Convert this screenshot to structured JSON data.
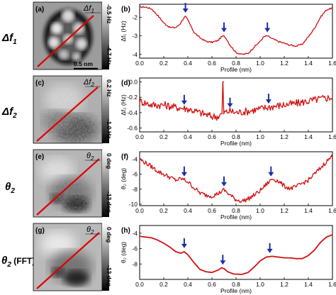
{
  "rows": [
    {
      "row_label": "Δf",
      "row_sub": "1",
      "image_panel": "(a)",
      "image_tag": "Δf",
      "image_tag_sub": "1",
      "scale_top": "-0.5 Hz",
      "scale_bottom": "-4.7 Hz",
      "scalebar_label": "0.5 nm",
      "plot_panel": "(b)"
    },
    {
      "row_label": "Δf",
      "row_sub": "2",
      "image_panel": "(c)",
      "image_tag": "Δf",
      "image_tag_sub": "2",
      "scale_top": "0.2 Hz",
      "scale_bottom": "-1.0 Hz",
      "scalebar_label": "",
      "plot_panel": "(d)"
    },
    {
      "row_label": "θ",
      "row_sub": "2",
      "image_panel": "(e)",
      "image_tag": "θ",
      "image_tag_sub": "2",
      "scale_top": "0 deg",
      "scale_bottom": "-13 deg",
      "scalebar_label": "",
      "plot_panel": "(f)"
    },
    {
      "row_label": "θ",
      "row_sub": "2",
      "row_suffix": " (FFT)",
      "image_panel": "(g)",
      "image_tag": "θ",
      "image_tag_sub": "2",
      "scale_top": "0 deg",
      "scale_bottom": "-13 deg",
      "scalebar_label": "",
      "plot_panel": "(h)"
    }
  ],
  "chart_data": [
    {
      "type": "line",
      "panel": "(b)",
      "xlabel": "Profile (nm)",
      "ylabel": "Δf₁ (Hz)",
      "xlim": [
        0,
        1.6
      ],
      "ylim": [
        -4.2,
        -1.3
      ],
      "xticks": [
        0.0,
        0.2,
        0.4,
        0.6,
        0.8,
        1.0,
        1.2,
        1.4,
        1.6
      ],
      "yticks": [
        -2.0,
        -3.0,
        -4.0
      ],
      "noise": 0.04,
      "series": [
        {
          "x": [
            0,
            0.05,
            0.1,
            0.15,
            0.2,
            0.25,
            0.3,
            0.33,
            0.36,
            0.38,
            0.4,
            0.45,
            0.5,
            0.55,
            0.6,
            0.65,
            0.68,
            0.7,
            0.72,
            0.75,
            0.8,
            0.85,
            0.9,
            0.95,
            1.0,
            1.03,
            1.06,
            1.1,
            1.15,
            1.2,
            1.25,
            1.3,
            1.35,
            1.4,
            1.45,
            1.5,
            1.55,
            1.6
          ],
          "y": [
            -1.45,
            -1.45,
            -1.55,
            -1.9,
            -2.3,
            -2.55,
            -2.55,
            -2.4,
            -2.1,
            -1.95,
            -2.15,
            -2.8,
            -3.1,
            -3.3,
            -3.35,
            -3.25,
            -3.05,
            -3.0,
            -3.15,
            -3.5,
            -3.9,
            -4.0,
            -3.95,
            -3.6,
            -3.3,
            -3.05,
            -3.0,
            -3.15,
            -3.3,
            -3.4,
            -3.5,
            -3.55,
            -3.45,
            -3.05,
            -2.6,
            -2.0,
            -1.6,
            -1.5
          ]
        }
      ],
      "arrows_x": [
        0.38,
        0.7,
        1.06
      ]
    },
    {
      "type": "line",
      "panel": "(d)",
      "xlabel": "Profile (nm)",
      "ylabel": "Δf₂ (Hz)",
      "xlim": [
        0,
        1.6
      ],
      "ylim": [
        -0.65,
        0.05
      ],
      "xticks": [
        0.0,
        0.2,
        0.4,
        0.6,
        0.8,
        1.0,
        1.2,
        1.4,
        1.6
      ],
      "yticks": [
        0.0,
        -0.2,
        -0.4,
        -0.6
      ],
      "noise": 0.05,
      "series": [
        {
          "x": [
            0,
            0.1,
            0.2,
            0.3,
            0.4,
            0.5,
            0.6,
            0.65,
            0.7,
            0.75,
            0.8,
            0.9,
            1.0,
            1.1,
            1.2,
            1.3,
            1.4,
            1.5,
            1.6
          ],
          "y": [
            -0.25,
            -0.3,
            -0.3,
            -0.33,
            -0.35,
            -0.4,
            -0.45,
            -0.45,
            -0.4,
            -0.38,
            -0.4,
            -0.38,
            -0.35,
            -0.32,
            -0.3,
            -0.28,
            -0.25,
            -0.22,
            -0.2
          ]
        }
      ],
      "spike": {
        "x": 0.69,
        "y": 0.0
      },
      "arrows_x": [
        0.37,
        0.75,
        1.07
      ]
    },
    {
      "type": "line",
      "panel": "(f)",
      "xlabel": "Profile (nm)",
      "ylabel": "θ₂ (deg)",
      "xlim": [
        0,
        1.6
      ],
      "ylim": [
        -10.2,
        -3.0
      ],
      "xticks": [
        0.0,
        0.2,
        0.4,
        0.6,
        0.8,
        1.0,
        1.2,
        1.4,
        1.6
      ],
      "yticks": [
        -4,
        -6,
        -8,
        -10
      ],
      "noise": 0.3,
      "series": [
        {
          "x": [
            0,
            0.05,
            0.1,
            0.15,
            0.2,
            0.25,
            0.3,
            0.35,
            0.4,
            0.45,
            0.5,
            0.55,
            0.6,
            0.65,
            0.7,
            0.75,
            0.8,
            0.85,
            0.9,
            0.95,
            1.0,
            1.05,
            1.1,
            1.15,
            1.2,
            1.25,
            1.3,
            1.35,
            1.4,
            1.45,
            1.5,
            1.55,
            1.6
          ],
          "y": [
            -4.0,
            -4.5,
            -5.0,
            -5.6,
            -6.0,
            -6.4,
            -6.8,
            -6.6,
            -7.0,
            -7.8,
            -8.5,
            -8.8,
            -8.9,
            -8.6,
            -8.1,
            -8.8,
            -9.4,
            -9.6,
            -9.3,
            -8.8,
            -8.2,
            -7.4,
            -6.6,
            -6.9,
            -7.6,
            -7.9,
            -7.7,
            -7.2,
            -6.8,
            -6.0,
            -5.2,
            -4.3,
            -3.6
          ]
        }
      ],
      "arrows_x": [
        0.37,
        0.7,
        1.09
      ]
    },
    {
      "type": "line",
      "panel": "(h)",
      "xlabel": "Profile (nm)",
      "ylabel": "θ₂ (deg)",
      "xlim": [
        0,
        1.6
      ],
      "ylim": [
        -10.0,
        -3.0
      ],
      "xticks": [
        0.0,
        0.2,
        0.4,
        0.6,
        0.8,
        1.0,
        1.2,
        1.4,
        1.6
      ],
      "yticks": [
        -4,
        -6,
        -8
      ],
      "noise": 0,
      "series": [
        {
          "x": [
            0,
            0.05,
            0.1,
            0.15,
            0.2,
            0.25,
            0.3,
            0.34,
            0.37,
            0.4,
            0.45,
            0.5,
            0.55,
            0.6,
            0.65,
            0.68,
            0.7,
            0.73,
            0.78,
            0.85,
            0.9,
            0.95,
            1.0,
            1.05,
            1.1,
            1.15,
            1.2,
            1.25,
            1.3,
            1.35,
            1.4,
            1.45,
            1.5,
            1.55,
            1.6
          ],
          "y": [
            -4.4,
            -4.5,
            -4.6,
            -4.9,
            -5.3,
            -5.8,
            -6.4,
            -6.6,
            -6.4,
            -6.8,
            -7.8,
            -8.7,
            -9.0,
            -9.1,
            -8.8,
            -8.5,
            -8.6,
            -9.0,
            -9.3,
            -9.35,
            -9.1,
            -8.4,
            -7.6,
            -7.1,
            -7.0,
            -7.1,
            -7.2,
            -7.2,
            -7.3,
            -7.3,
            -6.9,
            -6.2,
            -5.2,
            -4.5,
            -4.2
          ]
        }
      ],
      "arrows_x": [
        0.37,
        0.69,
        1.08
      ]
    }
  ]
}
